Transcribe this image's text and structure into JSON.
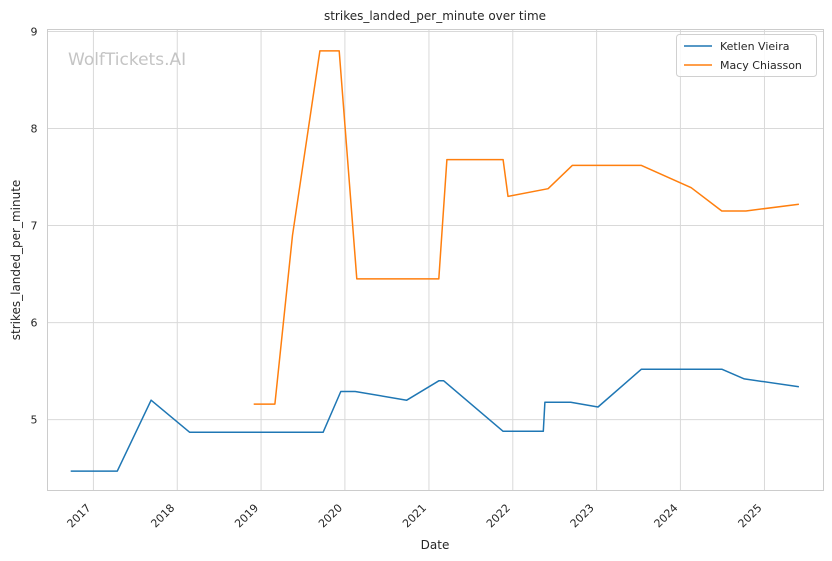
{
  "chart_data": {
    "type": "line",
    "title": "strikes_landed_per_minute over time",
    "xlabel": "Date",
    "ylabel": "strikes_landed_per_minute",
    "watermark": "WolfTickets.AI",
    "x_ticks": [
      "2017",
      "2018",
      "2019",
      "2020",
      "2021",
      "2022",
      "2023",
      "2024",
      "2025"
    ],
    "y_ticks": [
      5,
      6,
      7,
      8,
      9
    ],
    "xlim": [
      "2016-06-15",
      "2025-09-15"
    ],
    "ylim": [
      4.27,
      9.02
    ],
    "grid": true,
    "legend_position": "top-right",
    "series": [
      {
        "name": "Ketlen Vieira",
        "color": "#1f77b4",
        "points": [
          [
            "2016-09-24",
            4.47
          ],
          [
            "2017-04-15",
            4.47
          ],
          [
            "2017-09-09",
            5.2
          ],
          [
            "2018-02-24",
            4.87
          ],
          [
            "2019-09-28",
            4.87
          ],
          [
            "2019-12-14",
            5.29
          ],
          [
            "2020-02-15",
            5.29
          ],
          [
            "2020-09-26",
            5.2
          ],
          [
            "2021-02-13",
            5.4
          ],
          [
            "2021-03-06",
            5.4
          ],
          [
            "2021-11-20",
            4.88
          ],
          [
            "2022-05-14",
            4.88
          ],
          [
            "2022-05-21",
            5.18
          ],
          [
            "2022-09-10",
            5.18
          ],
          [
            "2023-01-07",
            5.13
          ],
          [
            "2023-07-15",
            5.52
          ],
          [
            "2024-06-29",
            5.52
          ],
          [
            "2024-10-05",
            5.42
          ],
          [
            "2025-05-31",
            5.34
          ]
        ]
      },
      {
        "name": "Macy Chiasson",
        "color": "#ff7f0e",
        "points": [
          [
            "2018-11-30",
            5.16
          ],
          [
            "2019-03-02",
            5.16
          ],
          [
            "2019-05-18",
            6.9
          ],
          [
            "2019-09-14",
            8.8
          ],
          [
            "2019-12-07",
            8.8
          ],
          [
            "2020-02-22",
            6.45
          ],
          [
            "2021-02-13",
            6.45
          ],
          [
            "2021-03-20",
            7.68
          ],
          [
            "2021-11-20",
            7.68
          ],
          [
            "2021-12-11",
            7.3
          ],
          [
            "2022-06-04",
            7.38
          ],
          [
            "2022-09-17",
            7.62
          ],
          [
            "2023-07-15",
            7.62
          ],
          [
            "2024-02-17",
            7.39
          ],
          [
            "2024-06-29",
            7.15
          ],
          [
            "2024-10-12",
            7.15
          ],
          [
            "2025-05-31",
            7.22
          ]
        ]
      }
    ]
  }
}
